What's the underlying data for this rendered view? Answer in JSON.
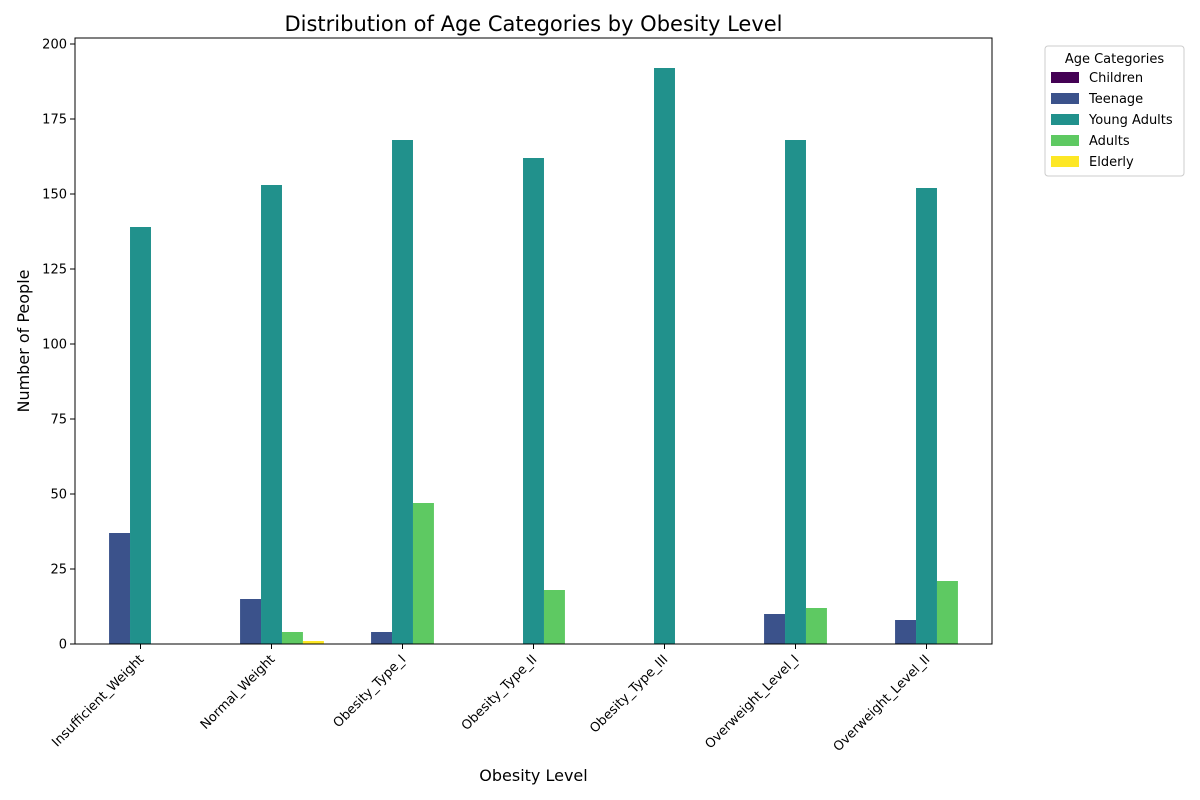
{
  "chart_data": {
    "type": "bar",
    "title": "Distribution of Age Categories by Obesity Level",
    "xlabel": "Obesity Level",
    "ylabel": "Number of People",
    "categories": [
      "Insufficient_Weight",
      "Normal_Weight",
      "Obesity_Type_I",
      "Obesity_Type_II",
      "Obesity_Type_III",
      "Overweight_Level_I",
      "Overweight_Level_II"
    ],
    "series": [
      {
        "name": "Children",
        "color": "#440154",
        "values": [
          0,
          0,
          0,
          0,
          0,
          0,
          0
        ]
      },
      {
        "name": "Teenage",
        "color": "#3b528b",
        "values": [
          37,
          15,
          4,
          0,
          0,
          10,
          8
        ]
      },
      {
        "name": "Young Adults",
        "color": "#21918c",
        "values": [
          139,
          153,
          168,
          162,
          192,
          168,
          152
        ]
      },
      {
        "name": "Adults",
        "color": "#5ec962",
        "values": [
          0,
          4,
          47,
          18,
          0,
          12,
          21
        ]
      },
      {
        "name": "Elderly",
        "color": "#fde725",
        "values": [
          0,
          1,
          0,
          0,
          0,
          0,
          0
        ]
      }
    ],
    "ylim": [
      0,
      202
    ],
    "yticks": [
      0,
      25,
      50,
      75,
      100,
      125,
      150,
      175,
      200
    ],
    "legend": {
      "title": "Age Categories",
      "placement": "outside-top-right"
    },
    "grid": false
  }
}
